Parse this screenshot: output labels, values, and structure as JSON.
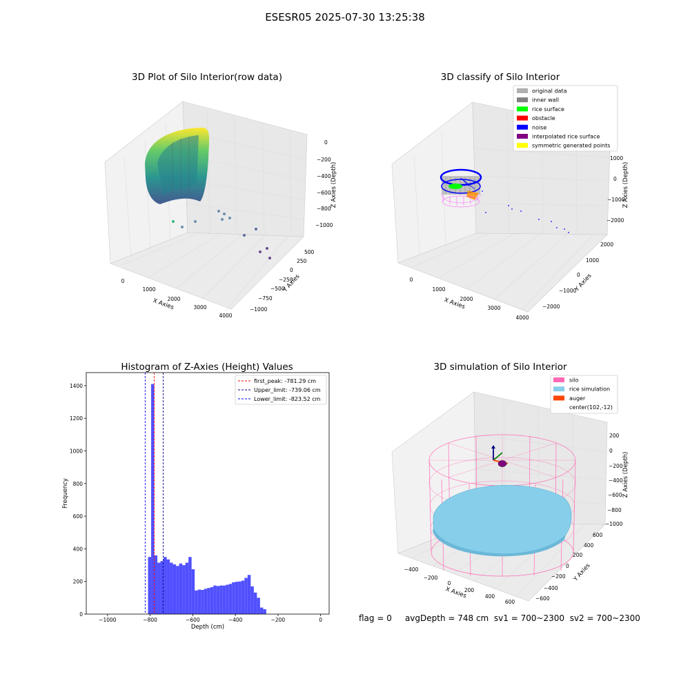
{
  "figure": {
    "title": "ESESR05 2025-07-30 13:25:38",
    "status": {
      "flag": "flag = 0",
      "avg_depth": "avgDepth = 748 cm",
      "sv1": "sv1 = 700~2300",
      "sv2": "sv2 = 700~2300"
    }
  },
  "chart_data": [
    {
      "type": "scatter",
      "title": "3D Plot of Silo Interior(row data)",
      "xlabel": "X Axies",
      "ylabel": "Y Axies",
      "zlabel": "Z Axies (Depth)",
      "x_ticks": [
        "0",
        "1000",
        "2000",
        "3000",
        "4000"
      ],
      "y_ticks": [
        "−1000",
        "−750",
        "−500",
        "−250",
        "0",
        "250",
        "500"
      ],
      "z_ticks": [
        "0",
        "−200",
        "−400",
        "−600",
        "−800",
        "−1000"
      ],
      "colormap": "viridis",
      "description_series": "point cloud of silo interior with outliers"
    },
    {
      "type": "scatter",
      "title": "3D classify of Silo Interior",
      "xlabel": "X Axies",
      "ylabel": "Y Axies",
      "zlabel": "Z Axies (Depth)",
      "x_ticks": [
        "0",
        "1000",
        "2000",
        "3000",
        "4000"
      ],
      "y_ticks": [
        "−2000",
        "−1000",
        "0",
        "1000",
        "2000"
      ],
      "z_ticks": [
        "1000",
        "0",
        "−1000",
        "−2000"
      ],
      "legend_position": "top-right",
      "legend": [
        {
          "label": "original data",
          "color": "#b0b0b0"
        },
        {
          "label": "inner wall",
          "color": "#808080"
        },
        {
          "label": "rice surface",
          "color": "#00ff00"
        },
        {
          "label": "obstacle",
          "color": "#ff0000"
        },
        {
          "label": "noise",
          "color": "#0000ff"
        },
        {
          "label": "interpolated rice surface",
          "color": "#800080"
        },
        {
          "label": "symmetric generated points",
          "color": "#ffff00"
        }
      ]
    },
    {
      "type": "bar",
      "title": "Histogram of Z-Axies (Height) Values",
      "xlabel": "Depth (cm)",
      "ylabel": "Frequency",
      "xlim": [
        -1100,
        40
      ],
      "ylim": [
        0,
        1480
      ],
      "x_ticks": [
        -1000,
        -800,
        -600,
        -400,
        -200,
        0
      ],
      "x_tick_labels": [
        "−1000",
        "−800",
        "−600",
        "−400",
        "−200",
        "0"
      ],
      "y_ticks": [
        0,
        200,
        400,
        600,
        800,
        1000,
        1200,
        1400
      ],
      "bar_color": "#5050ff",
      "bin_width": 14.6,
      "bins_start": -810,
      "values": [
        350,
        1410,
        360,
        315,
        325,
        350,
        335,
        315,
        305,
        295,
        310,
        300,
        315,
        350,
        275,
        145,
        150,
        148,
        155,
        160,
        165,
        175,
        172,
        175,
        175,
        180,
        185,
        195,
        198,
        200,
        205,
        222,
        240,
        170,
        132,
        100,
        40,
        30
      ],
      "lines": [
        {
          "label": "first_peak: -781.29 cm",
          "value": -781.29,
          "color": "#ff0000"
        },
        {
          "label": "Upper_limit: -739.06 cm",
          "value": -739.06,
          "color": "#00008b"
        },
        {
          "label": "Lower_limit: -823.52 cm",
          "value": -823.52,
          "color": "#0000ff"
        }
      ],
      "legend_position": "top-right"
    },
    {
      "type": "scatter",
      "title": "3D simulation of Silo Interior",
      "xlabel": "X Axies",
      "ylabel": "Y Axies",
      "zlabel": "Z Axies (Depth)",
      "x_ticks": [
        "−400",
        "−200",
        "0",
        "200",
        "400",
        "600"
      ],
      "y_ticks": [
        "−600",
        "−400",
        "−200",
        "0",
        "200",
        "400",
        "600"
      ],
      "z_ticks": [
        "200",
        "0",
        "−200",
        "−400",
        "−600",
        "−800",
        "−1000"
      ],
      "legend_position": "top-right",
      "legend": [
        {
          "label": "silo",
          "color": "#ff69b4"
        },
        {
          "label": "rice simulation",
          "color": "#87ceeb"
        },
        {
          "label": "auger",
          "color": "#ff4500"
        },
        {
          "label": "center(102,-12)",
          "color": ""
        }
      ]
    }
  ]
}
